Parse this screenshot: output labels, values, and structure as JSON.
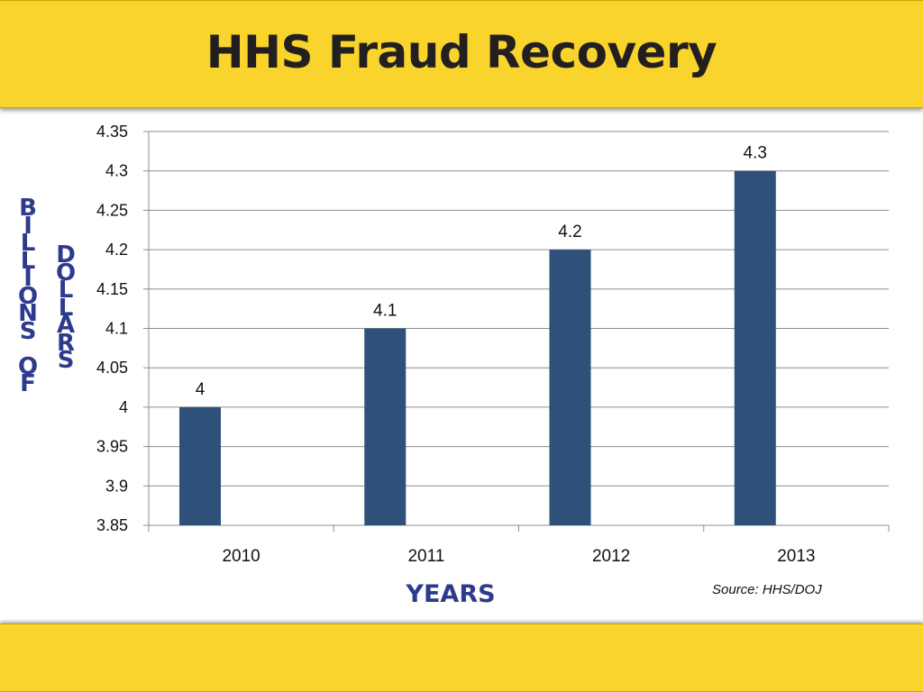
{
  "header": {
    "title": "HHS Fraud Recovery"
  },
  "y_axis_label": {
    "line1": "BILLIONS",
    "line2": "OF",
    "word2": "DOLLARS"
  },
  "x_axis_label": "YEARS",
  "source": "Source: HHS/DOJ",
  "colors": {
    "banner": "#f9d42c",
    "bar": "#2e5079",
    "axis_label": "#2e3a8c"
  },
  "chart_data": {
    "type": "bar",
    "categories": [
      "2010",
      "2011",
      "2012",
      "2013"
    ],
    "values": [
      4.0,
      4.1,
      4.2,
      4.3
    ],
    "data_labels": [
      "4",
      "4.1",
      "4.2",
      "4.3"
    ],
    "xlabel": "YEARS",
    "ylabel": "BILLIONS OF DOLLARS",
    "ylim": [
      3.85,
      4.35
    ],
    "yticks": [
      "3.85",
      "3.9",
      "3.95",
      "4",
      "4.05",
      "4.1",
      "4.15",
      "4.2",
      "4.25",
      "4.3",
      "4.35"
    ],
    "grid": true,
    "legend": "none"
  }
}
